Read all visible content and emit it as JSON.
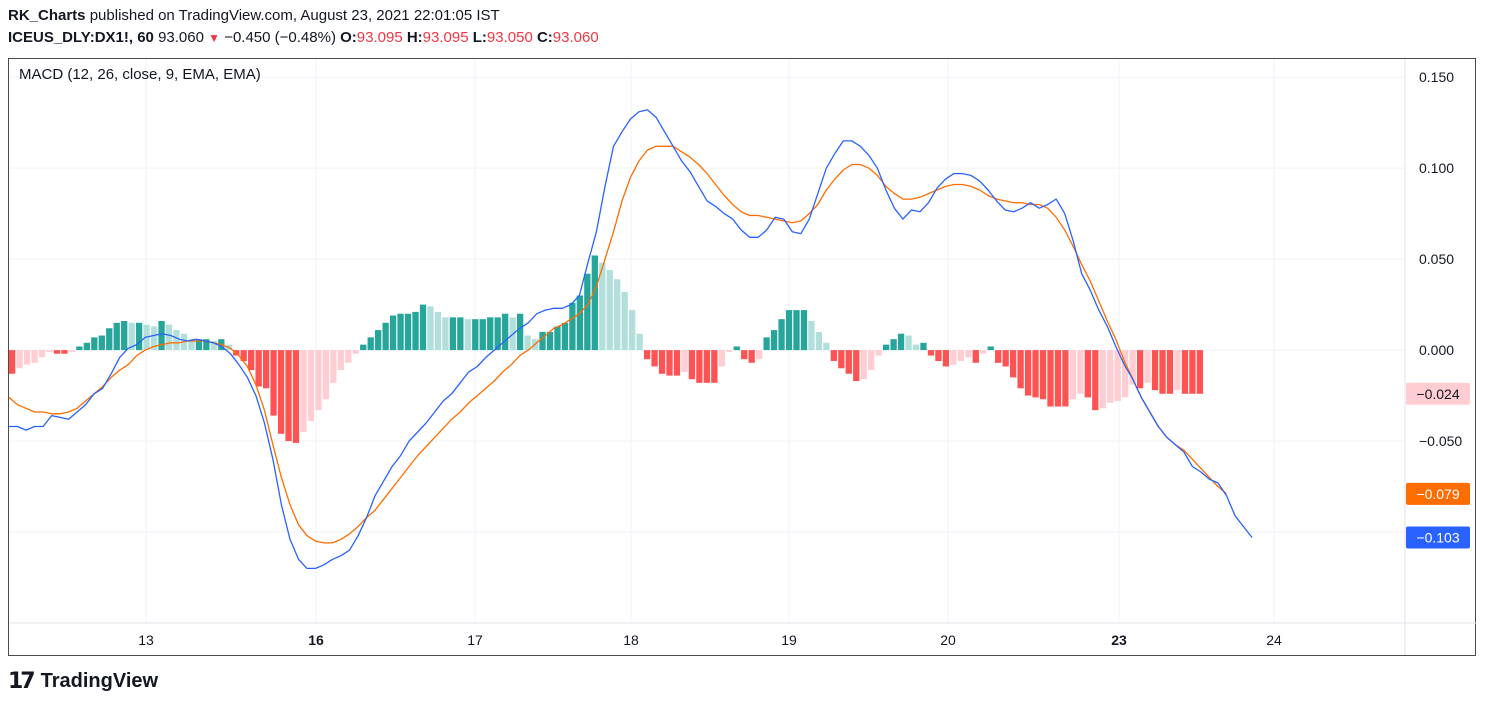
{
  "header": {
    "author": "RK_Charts",
    "published_text": "published on TradingView.com, August 23, 2021 22:01:05 IST",
    "symbol": "ICEUS_DLY:DX1!, 60",
    "last_price": "93.060",
    "change": "−0.450 (−0.48%)",
    "open_label": "O:",
    "open": "93.095",
    "high_label": "H:",
    "high": "93.095",
    "low_label": "L:",
    "low": "93.050",
    "close_label": "C:",
    "close": "93.060",
    "down_arrow": "▼"
  },
  "indicator_label": "MACD (12, 26, close, 9, EMA, EMA)",
  "brand": {
    "name": "TradingView",
    "logo_text": "17"
  },
  "colors": {
    "macd": "#2962ff",
    "signal": "#ff6d00",
    "hist_pos_strong": "#26a69a",
    "hist_pos_weak": "#b2dfdb",
    "hist_neg_strong": "#ff5252",
    "hist_neg_weak": "#ffcdd2",
    "grid": "#f0f3fa",
    "axis_text": "#131722"
  },
  "chart_data": {
    "type": "line",
    "title": "MACD (12, 26, close, 9, EMA, EMA)",
    "ylim": [
      -0.15,
      0.16
    ],
    "y_ticks": [
      "0.150",
      "0.100",
      "0.050",
      "0.000",
      "−0.050"
    ],
    "y_tick_values": [
      0.15,
      0.1,
      0.05,
      0.0,
      -0.05
    ],
    "x_ticks": [
      {
        "label": "13",
        "bold": false
      },
      {
        "label": "16",
        "bold": true
      },
      {
        "label": "17",
        "bold": false
      },
      {
        "label": "18",
        "bold": false
      },
      {
        "label": "19",
        "bold": false
      },
      {
        "label": "20",
        "bold": false
      },
      {
        "label": "23",
        "bold": true
      },
      {
        "label": "24",
        "bold": false
      }
    ],
    "last_values": [
      {
        "series": "histogram",
        "value": "−0.024",
        "bg": "#ffcdd2",
        "fg": "#131722",
        "v": -0.024
      },
      {
        "series": "signal",
        "value": "−0.079",
        "bg": "#ff6d00",
        "fg": "#ffffff",
        "v": -0.079
      },
      {
        "series": "macd",
        "value": "−0.103",
        "bg": "#2962ff",
        "fg": "#ffffff",
        "v": -0.103
      }
    ],
    "series": [
      {
        "name": "MACD",
        "color": "#2962ff",
        "values": [
          -0.042,
          -0.042,
          -0.044,
          -0.042,
          -0.042,
          -0.036,
          -0.037,
          -0.038,
          -0.034,
          -0.03,
          -0.024,
          -0.021,
          -0.013,
          -0.004,
          0.001,
          0.003,
          0.007,
          0.008,
          0.009,
          0.008,
          0.006,
          0.005,
          0.006,
          0.005,
          0.004,
          0.002,
          -0.002,
          -0.008,
          -0.015,
          -0.025,
          -0.04,
          -0.06,
          -0.085,
          -0.104,
          -0.115,
          -0.12,
          -0.12,
          -0.118,
          -0.115,
          -0.113,
          -0.11,
          -0.102,
          -0.092,
          -0.08,
          -0.072,
          -0.064,
          -0.058,
          -0.05,
          -0.045,
          -0.04,
          -0.034,
          -0.028,
          -0.024,
          -0.018,
          -0.012,
          -0.009,
          -0.004,
          0.0,
          0.004,
          0.008,
          0.012,
          0.015,
          0.02,
          0.022,
          0.023,
          0.023,
          0.025,
          0.03,
          0.048,
          0.065,
          0.09,
          0.112,
          0.12,
          0.127,
          0.131,
          0.132,
          0.128,
          0.12,
          0.112,
          0.104,
          0.098,
          0.09,
          0.082,
          0.079,
          0.075,
          0.072,
          0.066,
          0.062,
          0.062,
          0.066,
          0.073,
          0.072,
          0.065,
          0.064,
          0.072,
          0.086,
          0.1,
          0.108,
          0.115,
          0.115,
          0.112,
          0.107,
          0.1,
          0.088,
          0.078,
          0.072,
          0.077,
          0.076,
          0.081,
          0.089,
          0.094,
          0.097,
          0.097,
          0.096,
          0.093,
          0.088,
          0.082,
          0.077,
          0.076,
          0.078,
          0.081,
          0.078,
          0.08,
          0.083,
          0.075,
          0.06,
          0.042,
          0.033,
          0.022,
          0.013,
          0.002,
          -0.008,
          -0.016,
          -0.026,
          -0.034,
          -0.042,
          -0.048,
          -0.052,
          -0.056,
          -0.064,
          -0.067,
          -0.071,
          -0.073,
          -0.08,
          -0.091,
          -0.097,
          -0.103
        ]
      },
      {
        "name": "Signal",
        "color": "#ff6d00",
        "values": [
          -0.026,
          -0.03,
          -0.032,
          -0.034,
          -0.034,
          -0.035,
          -0.035,
          -0.034,
          -0.032,
          -0.028,
          -0.024,
          -0.02,
          -0.015,
          -0.011,
          -0.008,
          -0.003,
          0.0,
          0.002,
          0.003,
          0.004,
          0.004,
          0.005,
          0.005,
          0.005,
          0.004,
          0.003,
          0.001,
          -0.003,
          -0.009,
          -0.019,
          -0.033,
          -0.052,
          -0.07,
          -0.085,
          -0.096,
          -0.102,
          -0.105,
          -0.106,
          -0.106,
          -0.104,
          -0.101,
          -0.097,
          -0.092,
          -0.088,
          -0.082,
          -0.076,
          -0.07,
          -0.064,
          -0.058,
          -0.053,
          -0.048,
          -0.043,
          -0.038,
          -0.034,
          -0.029,
          -0.025,
          -0.021,
          -0.017,
          -0.012,
          -0.008,
          -0.003,
          0.0,
          0.004,
          0.008,
          0.012,
          0.014,
          0.017,
          0.02,
          0.025,
          0.035,
          0.05,
          0.065,
          0.082,
          0.095,
          0.104,
          0.11,
          0.112,
          0.112,
          0.112,
          0.109,
          0.106,
          0.102,
          0.097,
          0.091,
          0.085,
          0.08,
          0.076,
          0.074,
          0.074,
          0.073,
          0.072,
          0.071,
          0.07,
          0.071,
          0.075,
          0.08,
          0.088,
          0.094,
          0.099,
          0.102,
          0.102,
          0.1,
          0.096,
          0.09,
          0.086,
          0.083,
          0.083,
          0.084,
          0.086,
          0.088,
          0.09,
          0.091,
          0.091,
          0.09,
          0.088,
          0.085,
          0.083,
          0.082,
          0.081,
          0.081,
          0.08,
          0.08,
          0.078,
          0.073,
          0.066,
          0.057,
          0.047,
          0.038,
          0.027,
          0.016,
          0.006,
          -0.006,
          -0.016,
          -0.026,
          -0.034,
          -0.042,
          -0.048,
          -0.052,
          -0.055,
          -0.06,
          -0.065,
          -0.07,
          -0.075,
          -0.079
        ]
      },
      {
        "name": "Histogram",
        "color": "#26a69a",
        "values": [
          -0.013,
          -0.01,
          -0.008,
          -0.007,
          -0.004,
          -0.001,
          -0.002,
          -0.002,
          -0.001,
          0.002,
          0.004,
          0.007,
          0.008,
          0.012,
          0.015,
          0.016,
          0.015,
          0.015,
          0.014,
          0.013,
          0.016,
          0.014,
          0.011,
          0.009,
          0.006,
          0.006,
          0.006,
          0.005,
          0.006,
          0.003,
          -0.003,
          -0.006,
          -0.011,
          -0.02,
          -0.021,
          -0.036,
          -0.046,
          -0.05,
          -0.051,
          -0.045,
          -0.039,
          -0.033,
          -0.027,
          -0.018,
          -0.011,
          -0.007,
          -0.002,
          0.003,
          0.007,
          0.011,
          0.015,
          0.019,
          0.02,
          0.02,
          0.021,
          0.025,
          0.024,
          0.021,
          0.018,
          0.018,
          0.018,
          0.017,
          0.017,
          0.017,
          0.018,
          0.018,
          0.02,
          0.018,
          0.02,
          0.008,
          0.006,
          0.01,
          0.01,
          0.013,
          0.015,
          0.026,
          0.03,
          0.042,
          0.052,
          0.048,
          0.044,
          0.039,
          0.032,
          0.022,
          0.009,
          -0.005,
          -0.009,
          -0.013,
          -0.014,
          -0.014,
          -0.012,
          -0.016,
          -0.018,
          -0.018,
          -0.018,
          -0.009,
          -0.001,
          0.002,
          -0.005,
          -0.007,
          -0.005,
          0.007,
          0.011,
          0.017,
          0.022,
          0.022,
          0.022,
          0.016,
          0.01,
          0.004,
          -0.006,
          -0.01,
          -0.013,
          -0.017,
          -0.016,
          -0.011,
          -0.003,
          0.003,
          0.006,
          0.009,
          0.008,
          0.003,
          0.004,
          -0.003,
          -0.006,
          -0.009,
          -0.008,
          -0.006,
          -0.004,
          -0.007,
          -0.002,
          0.002,
          -0.007,
          -0.009,
          -0.015,
          -0.021,
          -0.025,
          -0.026,
          -0.027,
          -0.031,
          -0.031,
          -0.031,
          -0.027,
          -0.024,
          -0.026,
          -0.033,
          -0.032,
          -0.029,
          -0.028,
          -0.026,
          -0.019,
          -0.021,
          -0.018,
          -0.022,
          -0.024,
          -0.024,
          -0.022,
          -0.024,
          -0.024,
          -0.024
        ]
      }
    ]
  }
}
